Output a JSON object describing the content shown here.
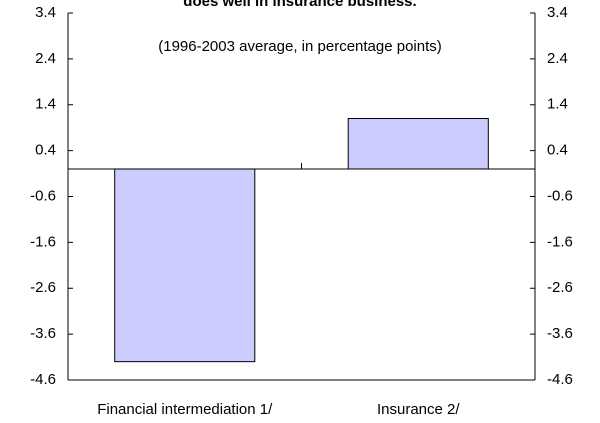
{
  "chart_data": {
    "type": "bar",
    "title": "does well in insurance business.",
    "subtitle": "(1996-2003 average, in percentage points)",
    "categories": [
      "Financial intermediation 1/",
      "Insurance 2/"
    ],
    "values": [
      -4.2,
      1.1
    ],
    "color": "#ccccff",
    "ylim": [
      -4.6,
      3.4
    ],
    "yticks": [
      3.4,
      2.4,
      1.4,
      0.4,
      -0.6,
      -1.6,
      -2.6,
      -3.6,
      -4.6
    ],
    "y2lim": [
      -4.6,
      3.4
    ],
    "y2ticks": [
      3.4,
      2.4,
      1.4,
      0.4,
      -0.6,
      -1.6,
      -2.6,
      -3.6,
      -4.6
    ],
    "grid": false
  }
}
